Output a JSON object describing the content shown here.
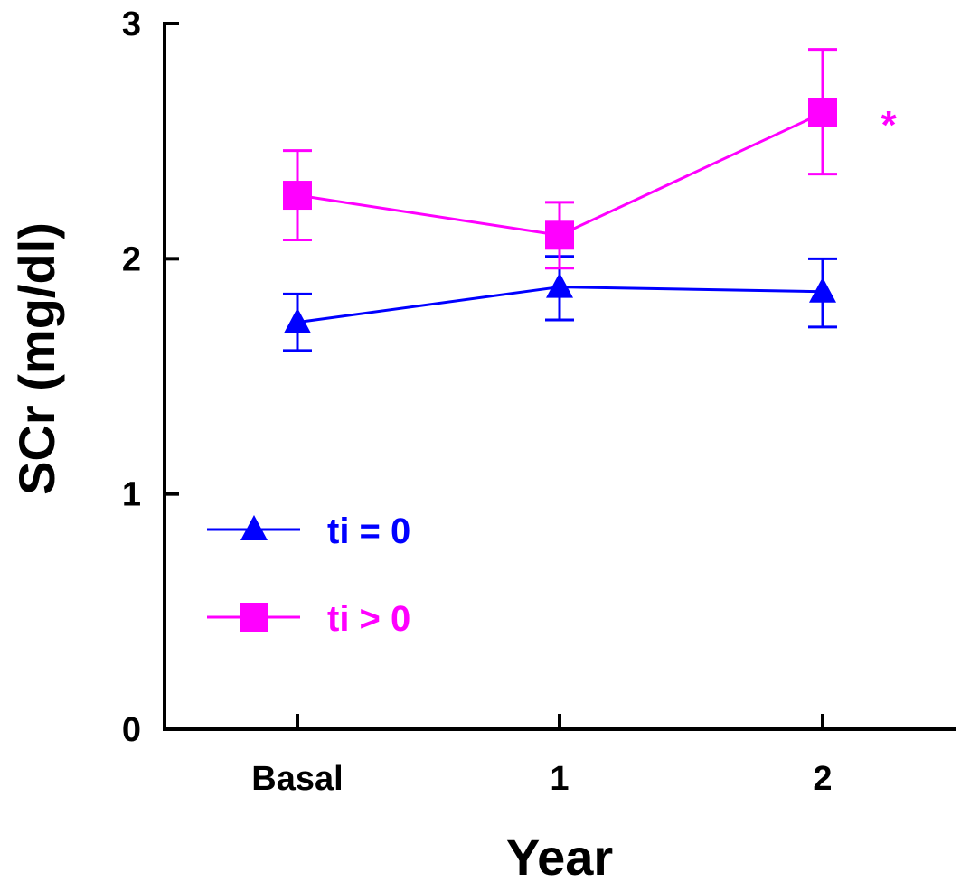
{
  "chart_data": {
    "type": "line",
    "title": "",
    "xlabel": "Year",
    "ylabel": "SCr (mg/dl)",
    "categories": [
      "Basal",
      "1",
      "2"
    ],
    "ylim": [
      0,
      3
    ],
    "yticks": [
      "0",
      "1",
      "2",
      "3"
    ],
    "grid": false,
    "legend_position": "bottom-left",
    "series": [
      {
        "name": "ti = 0",
        "color": "#0000ff",
        "marker": "triangle",
        "values": [
          1.73,
          1.88,
          1.86
        ],
        "error_upper": [
          1.85,
          2.01,
          2.0
        ],
        "error_lower": [
          1.61,
          1.74,
          1.71
        ]
      },
      {
        "name": "ti > 0",
        "color": "#ff00ff",
        "marker": "square",
        "values": [
          2.27,
          2.1,
          2.62
        ],
        "error_upper": [
          2.46,
          2.24,
          2.89
        ],
        "error_lower": [
          2.08,
          1.96,
          2.36
        ]
      }
    ],
    "annotations": [
      {
        "text": "*",
        "category": "2",
        "series": "ti > 0",
        "color": "#ff00ff"
      }
    ]
  }
}
